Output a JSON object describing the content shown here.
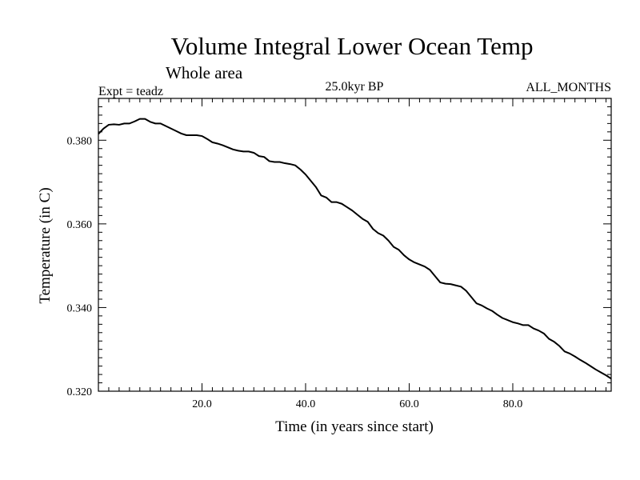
{
  "chart_data": {
    "type": "line",
    "title": "Volume Integral Lower Ocean Temp",
    "subtitle": "Whole area",
    "info_left": "Expt = teadz",
    "info_center": "25.0kyr BP",
    "info_right": "ALL_MONTHS",
    "xlabel": "Time (in years since start)",
    "ylabel": "Temperature (in C)",
    "xlim": [
      0,
      99
    ],
    "ylim": [
      0.32,
      0.39
    ],
    "x_ticks": [
      20,
      40,
      60,
      80
    ],
    "x_tick_labels": [
      "20.0",
      "40.0",
      "60.0",
      "80.0"
    ],
    "y_ticks": [
      0.32,
      0.34,
      0.36,
      0.38
    ],
    "y_tick_labels": [
      "0.320",
      "0.340",
      "0.360",
      "0.380"
    ],
    "x_minor_step": 2,
    "y_minor_step": 0.002,
    "grid": false,
    "series": [
      {
        "name": "Temperature",
        "x": [
          0,
          1,
          2,
          3,
          4,
          5,
          6,
          7,
          8,
          9,
          10,
          11,
          12,
          13,
          14,
          15,
          16,
          17,
          18,
          19,
          20,
          21,
          22,
          23,
          24,
          25,
          26,
          27,
          28,
          29,
          30,
          31,
          32,
          33,
          34,
          35,
          36,
          37,
          38,
          39,
          40,
          41,
          42,
          43,
          44,
          45,
          46,
          47,
          48,
          49,
          50,
          51,
          52,
          53,
          54,
          55,
          56,
          57,
          58,
          59,
          60,
          61,
          62,
          63,
          64,
          65,
          66,
          67,
          68,
          69,
          70,
          71,
          72,
          73,
          74,
          75,
          76,
          77,
          78,
          79,
          80,
          81,
          82,
          83,
          84,
          85,
          86,
          87,
          88,
          89,
          90,
          91,
          92,
          93,
          94,
          95,
          96,
          97,
          98,
          99
        ],
        "values": [
          0.3815,
          0.3828,
          0.3837,
          0.3838,
          0.3837,
          0.384,
          0.384,
          0.3845,
          0.3851,
          0.3851,
          0.3844,
          0.384,
          0.384,
          0.3834,
          0.3828,
          0.3822,
          0.3816,
          0.3812,
          0.3812,
          0.3812,
          0.381,
          0.3803,
          0.3795,
          0.3792,
          0.3788,
          0.3783,
          0.3778,
          0.3775,
          0.3773,
          0.3773,
          0.377,
          0.3762,
          0.376,
          0.375,
          0.3748,
          0.3748,
          0.3745,
          0.3743,
          0.374,
          0.373,
          0.3718,
          0.3703,
          0.3688,
          0.3668,
          0.3663,
          0.3652,
          0.3652,
          0.3648,
          0.364,
          0.3632,
          0.3622,
          0.3612,
          0.3605,
          0.3588,
          0.3578,
          0.3572,
          0.356,
          0.3545,
          0.3538,
          0.3525,
          0.3515,
          0.3508,
          0.3503,
          0.3498,
          0.349,
          0.3475,
          0.346,
          0.3457,
          0.3456,
          0.3453,
          0.345,
          0.344,
          0.3425,
          0.341,
          0.3405,
          0.3398,
          0.3392,
          0.3383,
          0.3375,
          0.337,
          0.3365,
          0.3362,
          0.3358,
          0.3358,
          0.335,
          0.3345,
          0.3338,
          0.3325,
          0.3318,
          0.3308,
          0.3295,
          0.329,
          0.3283,
          0.3275,
          0.3268,
          0.326,
          0.3252,
          0.3245,
          0.3238,
          0.323
        ]
      }
    ]
  },
  "colors": {
    "line": "#000000",
    "axes": "#000000",
    "background": "#ffffff"
  }
}
